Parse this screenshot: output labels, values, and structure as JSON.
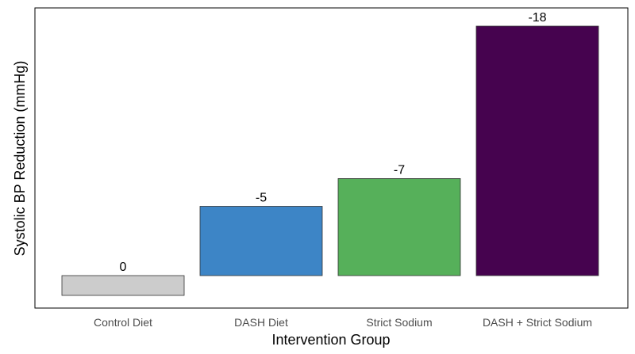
{
  "chart_data": {
    "type": "bar",
    "title": "",
    "xlabel": "Intervention Group",
    "ylabel": "Systolic BP Reduction (mmHg)",
    "categories": [
      "Control Diet",
      "DASH Diet",
      "Strict Sodium",
      "DASH + Strict Sodium"
    ],
    "values": [
      0,
      -5,
      -7,
      -18
    ],
    "data_labels": [
      "0",
      "-5",
      "-7",
      "-18"
    ],
    "colors": [
      "#cccccc",
      "#3d85c6",
      "#56b05a",
      "#46034f"
    ],
    "y_axis_ticks_shown": false,
    "grid": false,
    "legend": "none"
  }
}
